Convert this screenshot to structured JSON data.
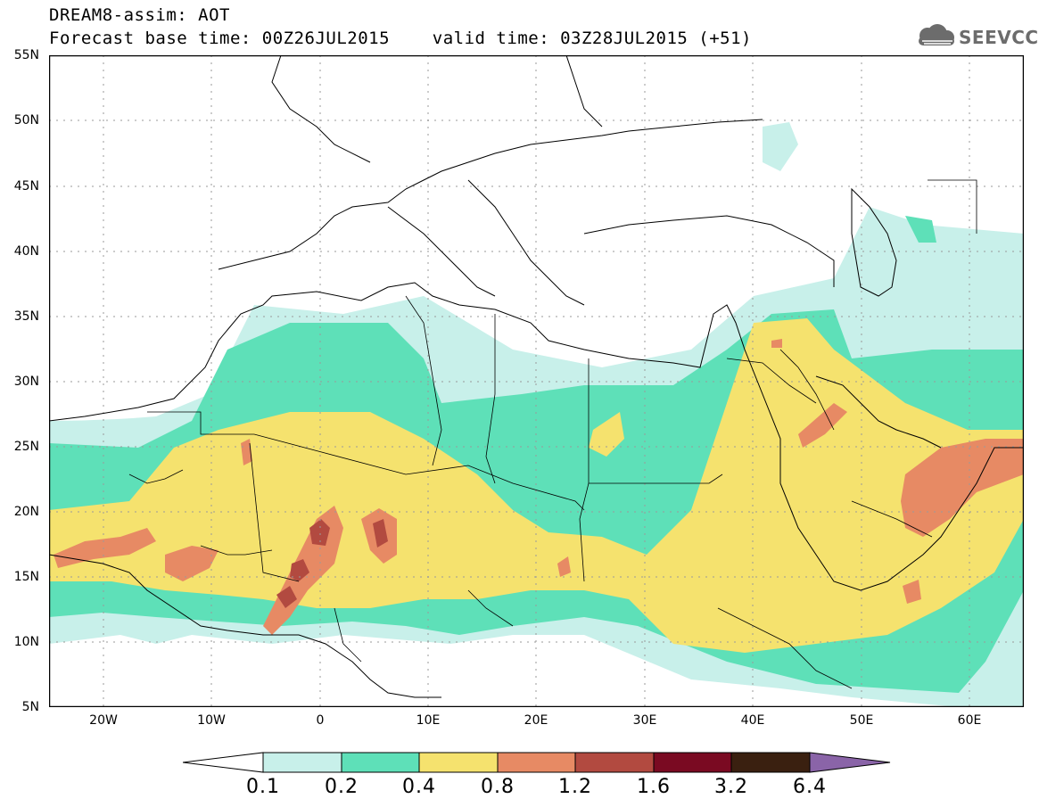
{
  "header": {
    "title_line1": "DREAM8-assim: AOT",
    "title_line2": "Forecast base time: 00Z26JUL2015    valid time: 03Z28JUL2015 (+51)",
    "logo_text": "SEEVCCC"
  },
  "map": {
    "lat_labels": [
      "55N",
      "50N",
      "45N",
      "40N",
      "35N",
      "30N",
      "25N",
      "20N",
      "15N",
      "10N",
      "5N"
    ],
    "lon_labels": [
      "20W",
      "10W",
      "0",
      "10E",
      "20E",
      "30E",
      "40E",
      "50E",
      "60E"
    ]
  },
  "legend": {
    "levels": [
      "0.1",
      "0.2",
      "0.4",
      "0.8",
      "1.2",
      "1.6",
      "3.2",
      "6.4"
    ],
    "colors": [
      "#c8f0ea",
      "#5ee0b8",
      "#f5e26e",
      "#e78a64",
      "#b24a40",
      "#7a0a22",
      "#3a2010",
      "#8a64a8"
    ]
  }
}
